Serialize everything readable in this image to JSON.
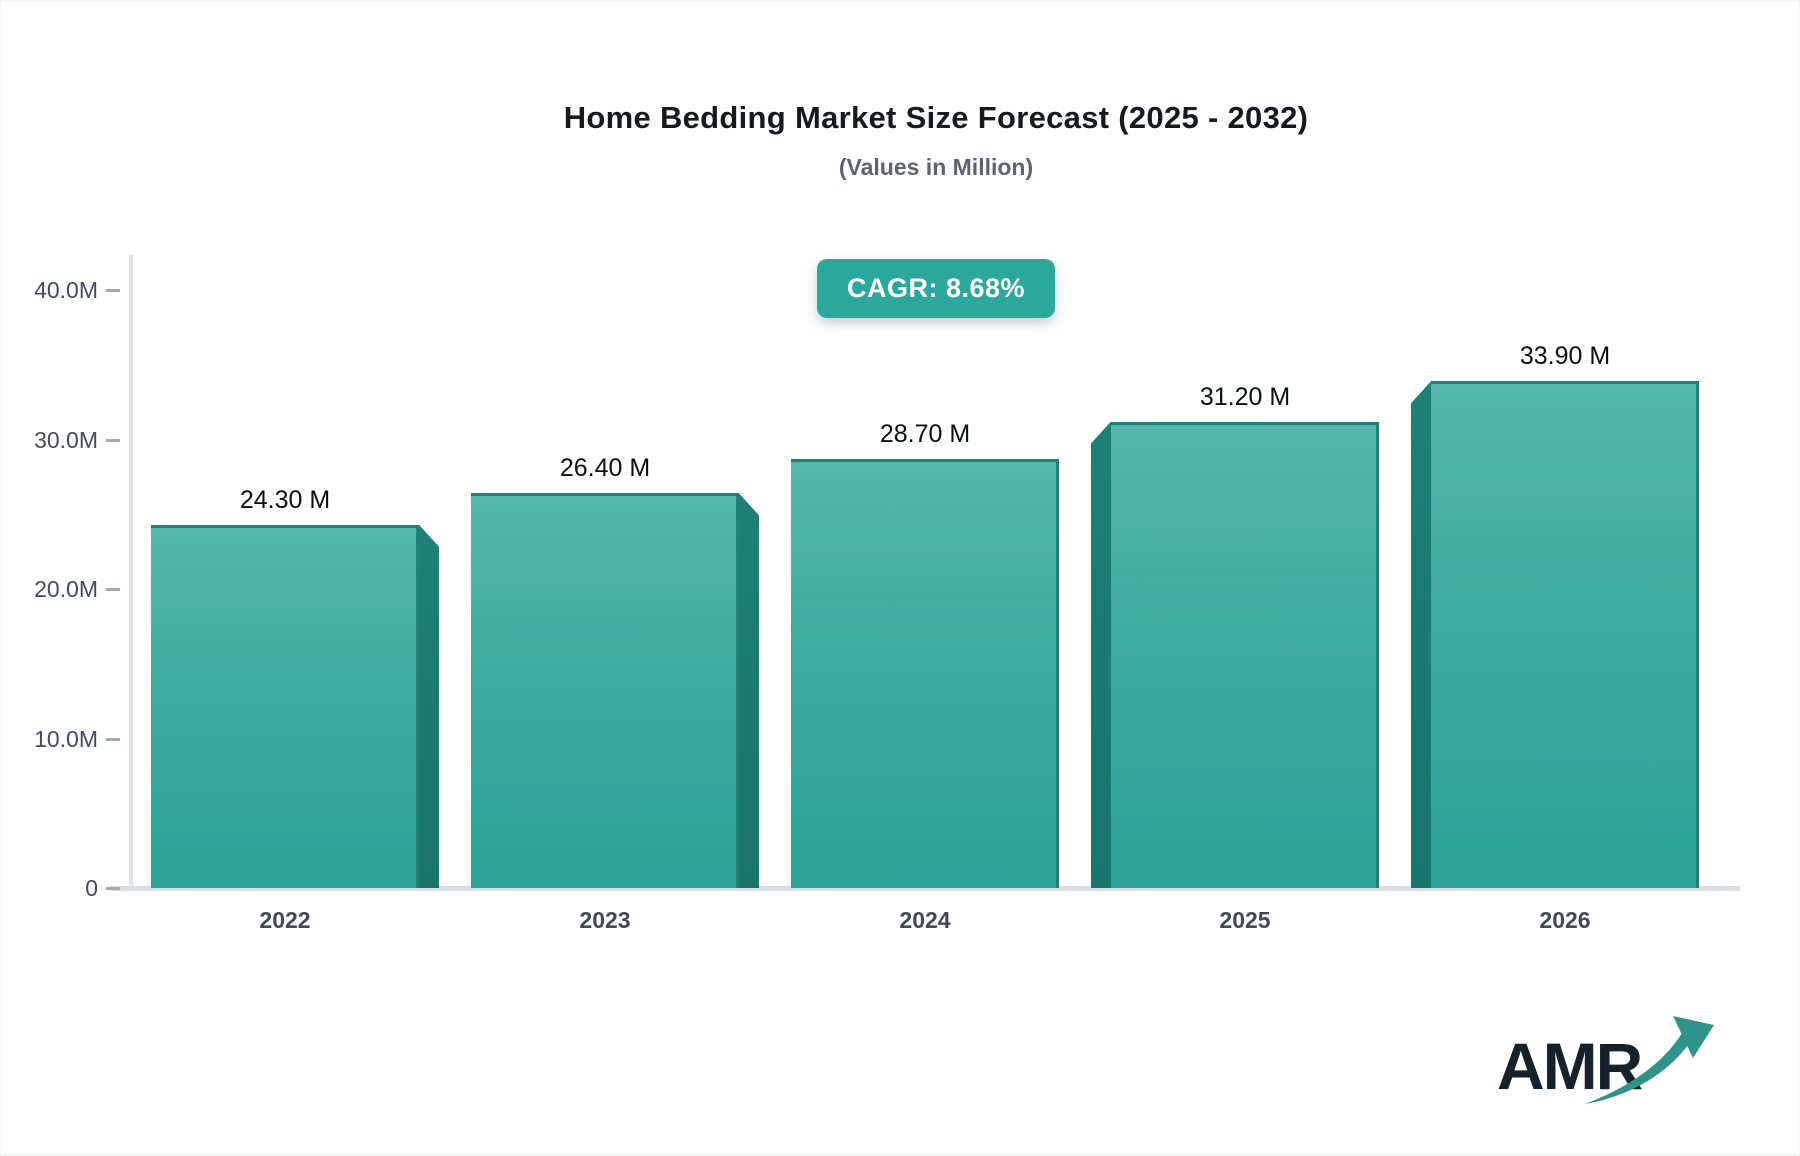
{
  "chart": {
    "title": "Home Bedding Market Size Forecast (2025 - 2032)",
    "subtitle": "(Values in Million)",
    "cagr_label": "CAGR: 8.68%"
  },
  "logo": {
    "text": "AMR",
    "icon": "growth-arrow-icon"
  },
  "chart_data": {
    "type": "bar",
    "title": "Home Bedding Market Size Forecast (2025 - 2032)",
    "subtitle": "(Values in Million)",
    "cagr": "8.68%",
    "categories": [
      "2022",
      "2023",
      "2024",
      "2025",
      "2026"
    ],
    "values": [
      24.3,
      26.4,
      28.7,
      31.2,
      33.9
    ],
    "bar_labels": [
      "24.30 M",
      "26.40 M",
      "28.70 M",
      "31.20 M",
      "33.90 M"
    ],
    "xlabel": "",
    "ylabel": "",
    "ylim": [
      0,
      40
    ],
    "yticks": [
      {
        "v": 0,
        "label": "0"
      },
      {
        "v": 10,
        "label": "10.0M"
      },
      {
        "v": 20,
        "label": "20.0M"
      },
      {
        "v": 30,
        "label": "30.0M"
      },
      {
        "v": 40,
        "label": "40.0M"
      }
    ],
    "grid": false,
    "legend": false,
    "bar_3d_effect": "side faces toward center: right side on 2022/2023, none on 2024, left side on 2025/2026",
    "colors": {
      "bar_top": "#54b6ac",
      "bar_bottom": "#2aa396",
      "bar_side": "#1b7a71",
      "bar_edge": "#1e8279",
      "badge_bg": "#2aa89c",
      "axis_line": "#dfe1e5",
      "axis_text": "#424c5c",
      "title_text": "#16191e",
      "subtitle_text": "#5b6472",
      "value_text": "#0b0e11"
    }
  }
}
